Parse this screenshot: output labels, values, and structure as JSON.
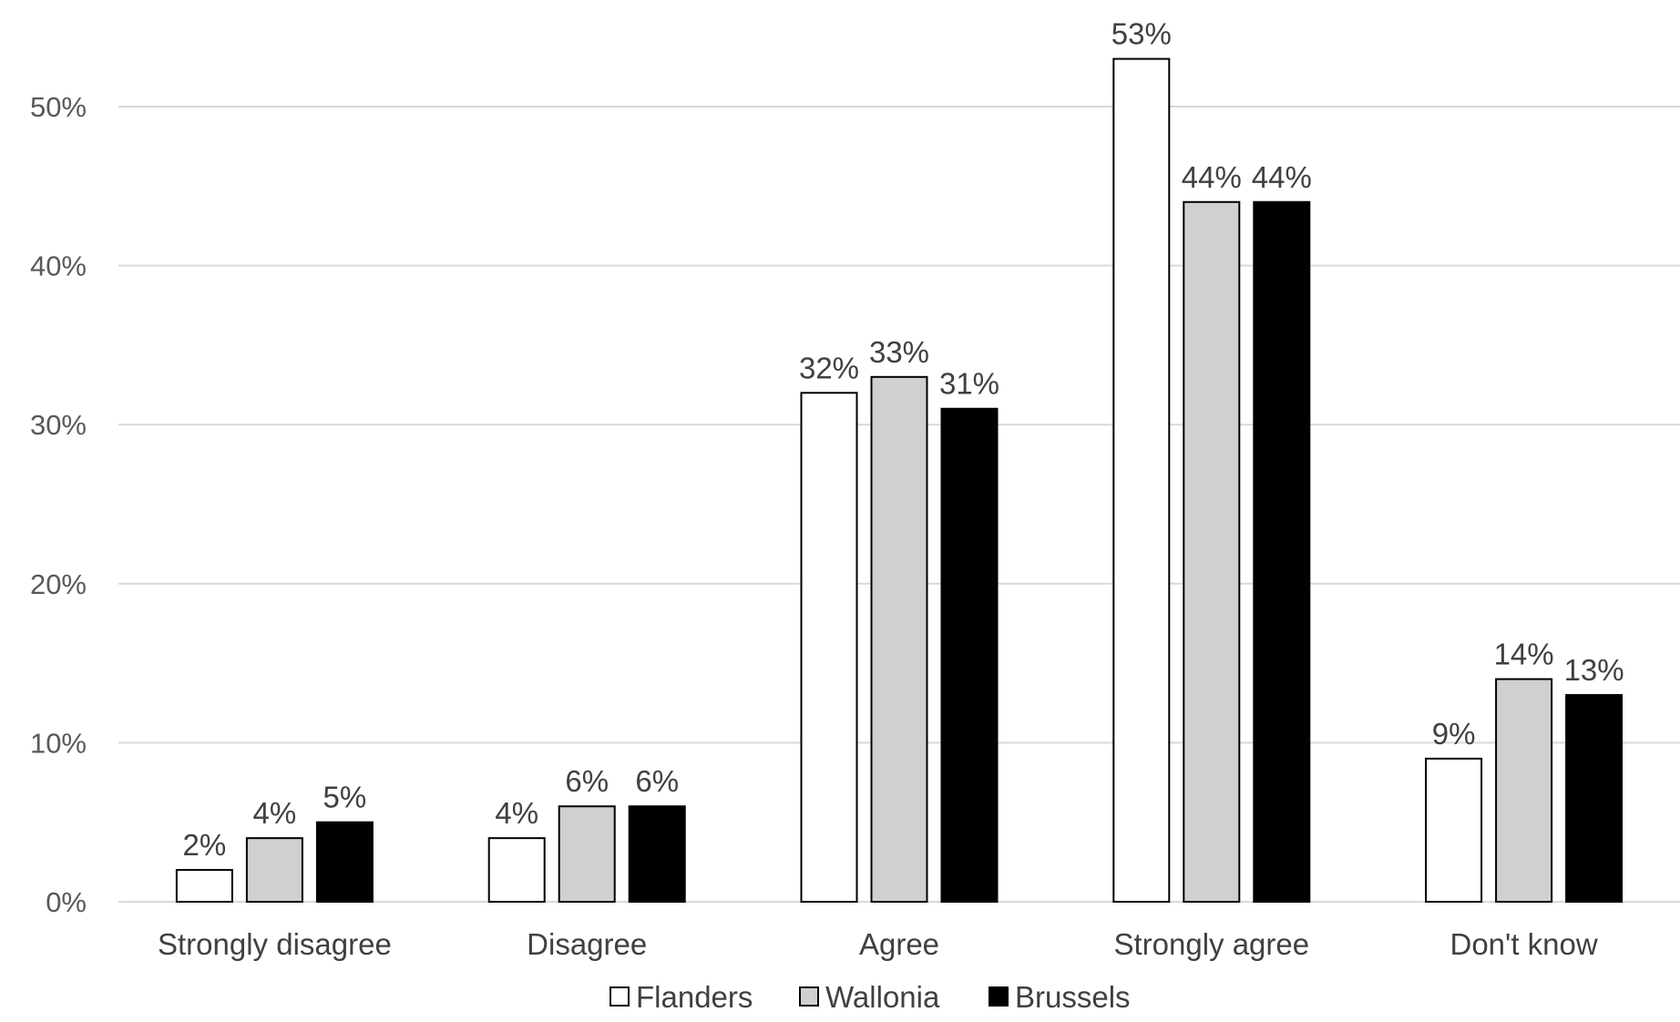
{
  "chart_data": {
    "type": "bar",
    "categories": [
      "Strongly disagree",
      "Disagree",
      "Agree",
      "Strongly agree",
      "Don't know"
    ],
    "series": [
      {
        "name": "Flanders",
        "values": [
          2,
          4,
          32,
          53,
          9
        ],
        "labels": [
          "2%",
          "4%",
          "32%",
          "53%",
          "9%"
        ],
        "color": "#ffffff"
      },
      {
        "name": "Wallonia",
        "values": [
          4,
          6,
          33,
          44,
          14
        ],
        "labels": [
          "4%",
          "6%",
          "33%",
          "44%",
          "14%"
        ],
        "color": "#d0d0d0"
      },
      {
        "name": "Brussels",
        "values": [
          5,
          6,
          31,
          44,
          13
        ],
        "labels": [
          "5%",
          "6%",
          "31%",
          "44%",
          "13%"
        ],
        "color": "#000000"
      }
    ],
    "ylim": [
      0,
      50
    ],
    "yticks": [
      0,
      10,
      20,
      30,
      40,
      50
    ],
    "ytick_labels": [
      "0%",
      "10%",
      "20%",
      "30%",
      "40%",
      "50%"
    ],
    "title": "",
    "xlabel": "",
    "ylabel": "",
    "grid": true,
    "legend_position": "bottom",
    "bar_outline_color": "#000000",
    "grid_color": "#d9d9d9",
    "text_color": "#404040"
  }
}
